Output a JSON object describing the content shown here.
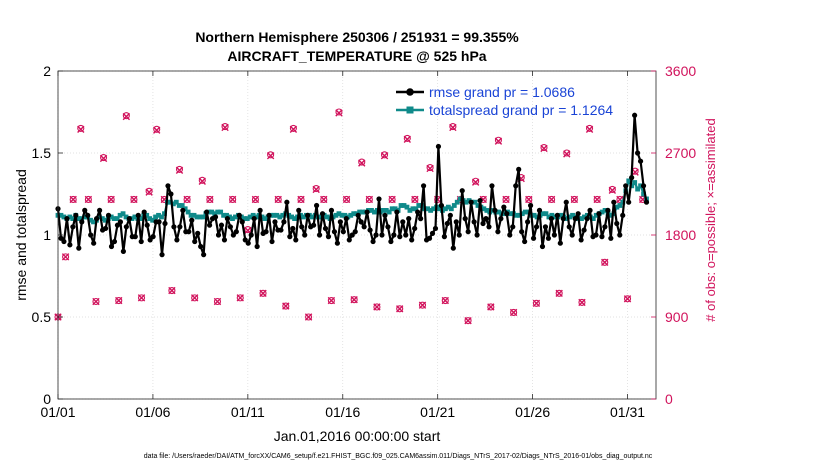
{
  "chart_data": {
    "type": "line",
    "title_line1": "Northern Hemisphere 250306 / 251931 = 99.355%",
    "title_line2": "AIRCRAFT_TEMPERATURE @ 525 hPa",
    "xlabel": "Jan.01,2016 00:00:00 start",
    "ylabel": "rmse and totalspread",
    "ylabel_right": "# of obs: o=possible; ×=assimilated",
    "footer": "data file: /Users/raeder/DAI/ATM_forcXX/CAM6_setup/f.e21.FHIST_BGC.f09_025.CAM6assim.011/Diags_NTrS_2017-02/Diags_NTrS_2016-01/obs_diag_output.nc",
    "x_tick_labels": [
      "01/01",
      "01/06",
      "01/11",
      "01/16",
      "01/21",
      "01/26",
      "01/31"
    ],
    "x_ticks": [
      0,
      5,
      10,
      15,
      20,
      25,
      30
    ],
    "xlim": [
      0,
      31.5
    ],
    "ylim": [
      0,
      2
    ],
    "y_ticks": [
      0,
      0.5,
      1,
      1.5,
      2
    ],
    "y_tick_labels": [
      "0",
      "0.5",
      "1",
      "1.5",
      "2"
    ],
    "y2lim": [
      0,
      3600
    ],
    "y2_ticks": [
      0,
      900,
      1800,
      2700,
      3600
    ],
    "y2_tick_labels": [
      "0",
      "900",
      "1800",
      "2700",
      "3600"
    ],
    "colors": {
      "rmse": "#000000",
      "spread": "#0f8a8a",
      "obs": "#d1135c",
      "legend_text": "#1a44d6",
      "grid": "#d9d9d9"
    },
    "series": [
      {
        "name": "rmse grand pr = 1.0686",
        "values": [
          1.16,
          0.98,
          0.96,
          1.1,
          0.94,
          1.05,
          1.12,
          0.92,
          1.08,
          1.15,
          1.12,
          1.0,
          0.95,
          1.1,
          1.15,
          1.03,
          1.04,
          1.12,
          0.93,
          0.96,
          1.06,
          1.08,
          0.9,
          1.05,
          1.1,
          0.99,
          0.99,
          1.12,
          0.96,
          1.14,
          1.06,
          0.97,
          0.99,
          1.08,
          1.08,
          0.88,
          1.07,
          1.3,
          1.25,
          1.05,
          0.97,
          1.05,
          1.15,
          1.02,
          1.02,
          1.09,
          0.96,
          1.01,
          0.93,
          0.88,
          1.14,
          1.06,
          1.1,
          1.11,
          1.0,
          1.06,
          0.97,
          1.1,
          1.05,
          1.0,
          1.02,
          1.12,
          1.08,
          0.97,
          0.95,
          1.0,
          1.1,
          0.93,
          1.15,
          1.01,
          1.02,
          1.12,
          0.96,
          1.08,
          1.03,
          1.03,
          1.08,
          1.2,
          0.99,
          1.04,
          0.97,
          1.15,
          1.05,
          1.0,
          1.12,
          1.05,
          1.06,
          1.18,
          1.0,
          1.13,
          1.04,
          0.99,
          1.15,
          1.02,
          0.95,
          1.08,
          1.02,
          1.1,
          0.97,
          1.0,
          1.02,
          1.12,
          1.08,
          1.05,
          1.14,
          1.03,
          0.96,
          1.0,
          1.22,
          1.0,
          1.12,
          1.05,
          0.96,
          1.0,
          1.14,
          0.99,
          1.08,
          1.0,
          1.1,
          0.97,
          1.04,
          1.14,
          1.1,
          1.3,
          0.97,
          0.98,
          1.01,
          1.04,
          1.54,
          1.18,
          0.99,
          1.07,
          1.12,
          0.92,
          1.08,
          1.0,
          1.27,
          1.1,
          1.02,
          1.2,
          1.08,
          1.0,
          1.21,
          1.07,
          1.1,
          1.05,
          1.3,
          1.15,
          1.02,
          1.1,
          1.17,
          1.13,
          1.0,
          1.05,
          1.3,
          1.4,
          1.02,
          0.96,
          1.08,
          1.18,
          0.98,
          1.05,
          1.15,
          0.93,
          1.05,
          0.98,
          1.1,
          1.0,
          1.12,
          0.95,
          1.1,
          1.2,
          1.05,
          1.0,
          1.1,
          1.13,
          0.97,
          1.03,
          1.1,
          1.15,
          0.99,
          1.0,
          1.13,
          0.99,
          1.05,
          1.15,
          0.98,
          1.2,
          1.07,
          1.0,
          1.12,
          1.3,
          1.2,
          1.35,
          1.73,
          1.5,
          1.45,
          1.3,
          1.2
        ]
      },
      {
        "name": "totalspread grand pr = 1.1264",
        "values": [
          1.12,
          1.12,
          1.11,
          1.1,
          1.11,
          1.1,
          1.12,
          1.1,
          1.1,
          1.11,
          1.11,
          1.09,
          1.08,
          1.09,
          1.11,
          1.1,
          1.09,
          1.1,
          1.11,
          1.1,
          1.1,
          1.12,
          1.13,
          1.11,
          1.1,
          1.1,
          1.11,
          1.1,
          1.1,
          1.12,
          1.12,
          1.1,
          1.09,
          1.11,
          1.12,
          1.11,
          1.13,
          1.2,
          1.2,
          1.19,
          1.2,
          1.18,
          1.18,
          1.16,
          1.14,
          1.12,
          1.12,
          1.11,
          1.11,
          1.11,
          1.13,
          1.14,
          1.14,
          1.13,
          1.14,
          1.14,
          1.12,
          1.12,
          1.11,
          1.1,
          1.11,
          1.12,
          1.11,
          1.1,
          1.1,
          1.11,
          1.12,
          1.11,
          1.12,
          1.11,
          1.1,
          1.11,
          1.12,
          1.12,
          1.12,
          1.11,
          1.12,
          1.13,
          1.12,
          1.11,
          1.1,
          1.11,
          1.12,
          1.11,
          1.12,
          1.12,
          1.11,
          1.12,
          1.11,
          1.11,
          1.12,
          1.11,
          1.1,
          1.11,
          1.12,
          1.13,
          1.12,
          1.12,
          1.11,
          1.12,
          1.13,
          1.13,
          1.14,
          1.14,
          1.14,
          1.15,
          1.15,
          1.14,
          1.15,
          1.14,
          1.15,
          1.15,
          1.14,
          1.16,
          1.16,
          1.15,
          1.18,
          1.18,
          1.17,
          1.15,
          1.16,
          1.16,
          1.18,
          1.18,
          1.16,
          1.16,
          1.15,
          1.16,
          1.17,
          1.16,
          1.15,
          1.16,
          1.17,
          1.16,
          1.18,
          1.2,
          1.22,
          1.21,
          1.2,
          1.21,
          1.2,
          1.2,
          1.18,
          1.17,
          1.16,
          1.15,
          1.14,
          1.15,
          1.14,
          1.14,
          1.13,
          1.13,
          1.14,
          1.13,
          1.13,
          1.12,
          1.12,
          1.13,
          1.14,
          1.14,
          1.12,
          1.12,
          1.11,
          1.12,
          1.13,
          1.13,
          1.11,
          1.12,
          1.11,
          1.11,
          1.12,
          1.11,
          1.1,
          1.11,
          1.12,
          1.11,
          1.1,
          1.1,
          1.11,
          1.12,
          1.11,
          1.1,
          1.12,
          1.13,
          1.14,
          1.15,
          1.13,
          1.12,
          1.13,
          1.17,
          1.18,
          1.2,
          1.27,
          1.33,
          1.3,
          1.32,
          1.28,
          1.3,
          1.25,
          1.22
        ]
      }
    ],
    "obs_possible": [
      900,
      1560,
      2190,
      2970,
      2190,
      1070,
      2650,
      2190,
      1080,
      3110,
      2190,
      1110,
      2280,
      2960,
      2190,
      1190,
      2520,
      2190,
      1110,
      2400,
      2190,
      1070,
      2990,
      2190,
      1110,
      1860,
      2190,
      1160,
      2680,
      2190,
      1020,
      2970,
      2190,
      900,
      2310,
      2190,
      1080,
      3150,
      2190,
      1090,
      2600,
      2190,
      1010,
      2680,
      2190,
      990,
      2860,
      2190,
      1030,
      2540,
      2190,
      1080,
      2990,
      2190,
      860,
      2390,
      2190,
      1010,
      2840,
      2190,
      950,
      2430,
      2190,
      1050,
      2760,
      2190,
      1160,
      2700,
      2190,
      1060,
      2970,
      2190,
      1500,
      2300,
      2190,
      1100,
      2500,
      2190
    ],
    "obs_assimilated": [
      900,
      1560,
      2190,
      2960,
      2190,
      1070,
      2640,
      2190,
      1080,
      3100,
      2190,
      1110,
      2270,
      2950,
      2190,
      1190,
      2510,
      2190,
      1110,
      2390,
      2190,
      1070,
      2980,
      2190,
      1110,
      1850,
      2190,
      1160,
      2670,
      2190,
      1020,
      2960,
      2190,
      900,
      2300,
      2190,
      1080,
      3140,
      2190,
      1090,
      2590,
      2190,
      1010,
      2670,
      2190,
      990,
      2850,
      2190,
      1030,
      2530,
      2190,
      1080,
      2980,
      2190,
      860,
      2380,
      2190,
      1010,
      2830,
      2190,
      950,
      2420,
      2190,
      1050,
      2750,
      2190,
      1160,
      2690,
      2190,
      1060,
      2960,
      2190,
      1500,
      2290,
      2190,
      1100,
      2490,
      2190
    ]
  }
}
